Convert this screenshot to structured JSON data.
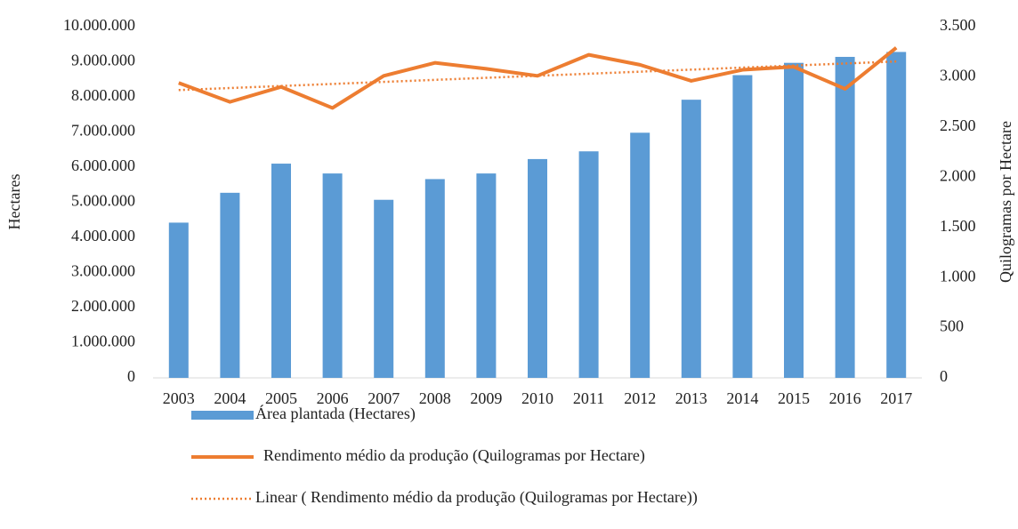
{
  "chart_data": {
    "type": "bar_line",
    "categories": [
      "2003",
      "2004",
      "2005",
      "2006",
      "2007",
      "2008",
      "2009",
      "2010",
      "2011",
      "2012",
      "2013",
      "2014",
      "2015",
      "2016",
      "2017"
    ],
    "series": [
      {
        "name": "Área plantada (Hectares)",
        "color": "#5b9bd5",
        "type": "bar",
        "values": [
          4420000,
          5270000,
          6100000,
          5820000,
          5070000,
          5660000,
          5820000,
          6230000,
          6450000,
          6980000,
          7920000,
          8620000,
          8970000,
          9140000,
          9280000
        ]
      },
      {
        "name": "Rendimento médio da produção (Quilogramas por Hectare)",
        "color": "#ed7d31",
        "type": "line",
        "axis": "y2",
        "values": [
          2940,
          2750,
          2900,
          2690,
          3010,
          3140,
          3080,
          3010,
          3220,
          3120,
          2960,
          3070,
          3100,
          2880,
          3290
        ]
      }
    ],
    "trendline": {
      "name": "Linear ( Rendimento médio da produção (Quilogramas por Hectare))",
      "color": "#ed7d31",
      "style": "dotted"
    },
    "ylabel": "Hectares",
    "y2label": "Quilogramas por Hectare",
    "ylim": [
      0,
      10000000
    ],
    "yticks": [
      0,
      {
        "value": 1000000,
        "label": "1.000.000"
      },
      {
        "value": 2000000,
        "label": "2.000.000"
      },
      {
        "value": 3000000,
        "label": "3.000.000"
      },
      {
        "value": 4000000,
        "label": "4.000.000"
      },
      {
        "value": 5000000,
        "label": "5.000.000"
      },
      {
        "value": 6000000,
        "label": "6.000.000"
      },
      {
        "value": 7000000,
        "label": "7.000.000"
      },
      {
        "value": 8000000,
        "label": "8.000.000"
      },
      {
        "value": 9000000,
        "label": "9.000.000"
      },
      {
        "value": 10000000,
        "label": "10.000.000"
      }
    ],
    "y2lim": [
      0,
      3500
    ],
    "y2ticks": [
      0,
      500,
      {
        "value": 1000,
        "label": "1.000"
      },
      {
        "value": 1500,
        "label": "1.500"
      },
      {
        "value": 2000,
        "label": "2.000"
      },
      {
        "value": 2500,
        "label": "2.500"
      },
      {
        "value": 3000,
        "label": "3.000"
      },
      {
        "value": 3500,
        "label": "3.500"
      }
    ],
    "grid": false,
    "legend": "bottom"
  }
}
